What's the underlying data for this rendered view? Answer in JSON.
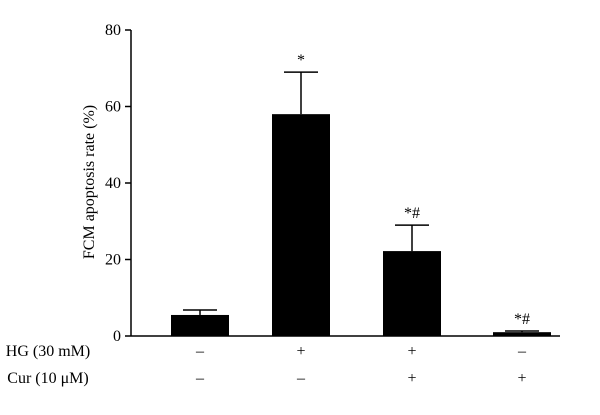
{
  "chart_data": {
    "type": "bar",
    "ylabel": "FCM apoptosis rate (%)",
    "ylim": [
      0,
      80
    ],
    "yticks": [
      "0",
      "20",
      "40",
      "60",
      "80"
    ],
    "values": [
      5.5,
      58.0,
      22.2,
      1.0
    ],
    "errors": [
      1.3,
      11.0,
      6.8,
      0.3
    ],
    "annotations": [
      "",
      "*",
      "*#",
      "*#"
    ],
    "conditions": [
      {
        "label": "HG (30 mM)",
        "values": [
          "–",
          "+",
          "+",
          "–"
        ]
      },
      {
        "label": "Cur (10 μM)",
        "values": [
          "–",
          "–",
          "+",
          "+"
        ]
      }
    ],
    "bar_color": "#000000"
  }
}
